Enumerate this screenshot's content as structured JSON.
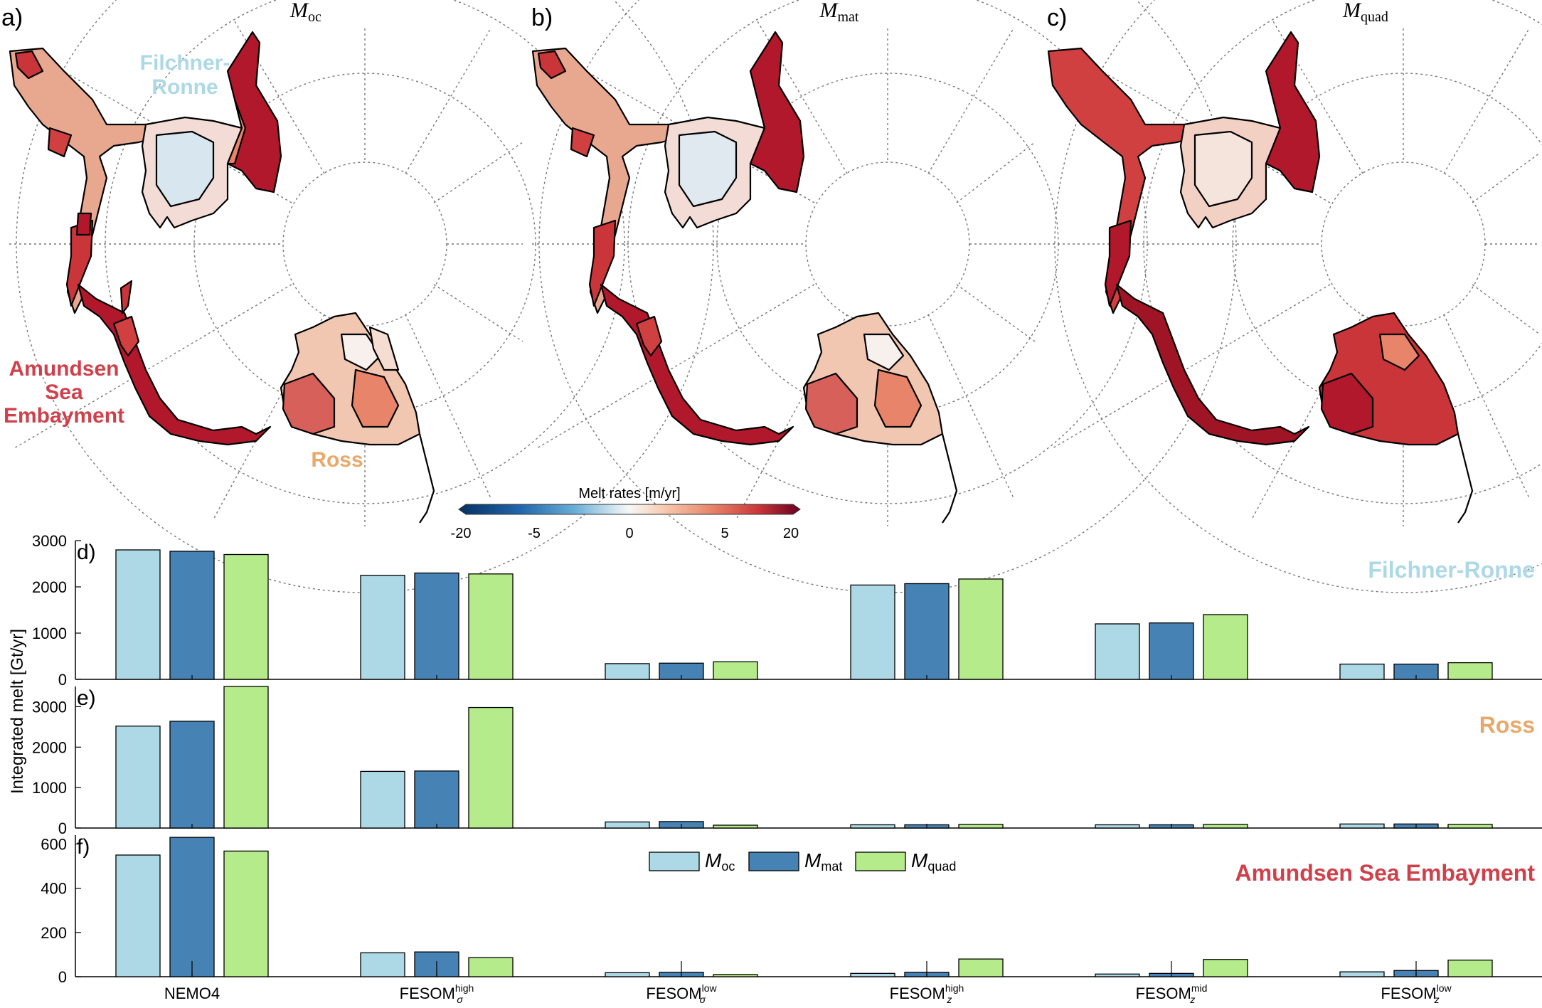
{
  "maps": [
    {
      "letter": "a)",
      "symbol": "M",
      "sub": "oc"
    },
    {
      "letter": "b)",
      "symbol": "M",
      "sub": "mat"
    },
    {
      "letter": "c)",
      "symbol": "M",
      "sub": "quad"
    }
  ],
  "region_labels": {
    "filchner_line1": "Filchner-",
    "filchner_line2": "Ronne",
    "amundsen_line1": "Amundsen",
    "amundsen_line2": "Sea",
    "amundsen_line3": "Embayment",
    "ross": "Ross"
  },
  "colorbar": {
    "title": "Melt rates [m/yr]",
    "ticks": [
      "-20",
      "-5",
      "0",
      "5",
      "20"
    ]
  },
  "colors": {
    "oc": "#add8e6",
    "mat": "#4682b4",
    "quad": "#b5eb8b",
    "filchner": "#add8e6",
    "ross": "#e8a86a",
    "amundsen": "#d0404b",
    "melt_high": "#b2182b",
    "melt_mid": "#e8846a",
    "melt_low": "#f6dccf"
  },
  "ylabel": "Integrated melt [Gt/yr]",
  "legend": [
    {
      "symbol": "M",
      "sub": "oc",
      "key": "oc"
    },
    {
      "symbol": "M",
      "sub": "mat",
      "key": "mat"
    },
    {
      "symbol": "M",
      "sub": "quad",
      "key": "quad"
    }
  ],
  "categories": [
    {
      "base": "NEMO4",
      "sup": "",
      "sub": ""
    },
    {
      "base": "FESOM",
      "sup": "high",
      "sub": "σ"
    },
    {
      "base": "FESOM",
      "sup": "low",
      "sub": "σ"
    },
    {
      "base": "FESOM",
      "sup": "high",
      "sub": "z"
    },
    {
      "base": "FESOM",
      "sup": "mid",
      "sub": "z"
    },
    {
      "base": "FESOM",
      "sup": "low",
      "sub": "z"
    }
  ],
  "chart_data": [
    {
      "type": "bar",
      "panel": "d)",
      "title": "Filchner-Ronne",
      "ylim": [
        0,
        3000
      ],
      "yticks": [
        0,
        1000,
        2000,
        3000
      ],
      "series": [
        {
          "name": "M_oc",
          "values": [
            2800,
            2250,
            340,
            2040,
            1200,
            330
          ]
        },
        {
          "name": "M_mat",
          "values": [
            2770,
            2300,
            350,
            2070,
            1220,
            330
          ]
        },
        {
          "name": "M_quad",
          "values": [
            2700,
            2280,
            380,
            2170,
            1400,
            360
          ]
        }
      ]
    },
    {
      "type": "bar",
      "panel": "e)",
      "title": "Ross",
      "ylim": [
        0,
        3500
      ],
      "yticks": [
        0,
        1000,
        2000,
        3000
      ],
      "series": [
        {
          "name": "M_oc",
          "values": [
            2520,
            1400,
            150,
            80,
            80,
            100
          ]
        },
        {
          "name": "M_mat",
          "values": [
            2640,
            1410,
            160,
            80,
            80,
            100
          ]
        },
        {
          "name": "M_quad",
          "values": [
            3500,
            2980,
            70,
            90,
            90,
            90
          ]
        }
      ]
    },
    {
      "type": "bar",
      "panel": "f)",
      "title": "Amundsen Sea Embayment",
      "ylim": [
        0,
        640
      ],
      "yticks": [
        0,
        200,
        400,
        600
      ],
      "series": [
        {
          "name": "M_oc",
          "values": [
            550,
            108,
            18,
            15,
            12,
            22
          ]
        },
        {
          "name": "M_mat",
          "values": [
            630,
            112,
            20,
            20,
            15,
            28
          ]
        },
        {
          "name": "M_quad",
          "values": [
            568,
            86,
            10,
            80,
            78,
            75
          ]
        }
      ]
    }
  ]
}
